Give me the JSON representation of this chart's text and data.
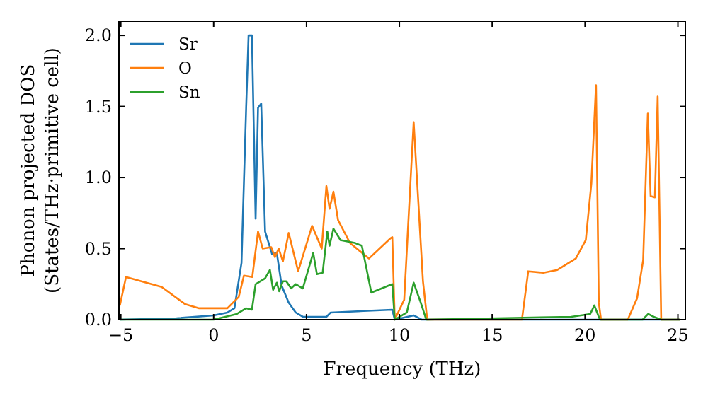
{
  "chart_data": {
    "type": "line",
    "xlabel": "Frequency (THz)",
    "ylabel": "Phonon projected DOS\n(States/THz·primitive cell)",
    "xlim": [
      -5.1,
      25.4
    ],
    "ylim": [
      0,
      2.1
    ],
    "xticks": [
      {
        "value": -5,
        "label": "−5"
      },
      0,
      5,
      10,
      15,
      20,
      25
    ],
    "yticks": [
      {
        "value": 0,
        "label": "0.0"
      },
      0.5,
      {
        "value": 1,
        "label": "1.0"
      },
      1.5,
      {
        "value": 2,
        "label": "2.0"
      }
    ],
    "grid": false,
    "legend": "top left",
    "marker": "none",
    "line_style": "solid",
    "series": [
      {
        "name": "Sr",
        "color": "#1f77b4",
        "x": [
          -5.05,
          -2,
          0,
          0.74,
          1.12,
          1.5,
          1.75,
          1.88,
          2.06,
          2.26,
          2.39,
          2.56,
          2.77,
          3.15,
          3.4,
          3.66,
          4.04,
          4.42,
          4.8,
          6.07,
          6.3,
          9.62,
          9.75,
          10.77,
          11.2,
          25.1
        ],
        "values": [
          0,
          0.01,
          0.03,
          0.05,
          0.08,
          0.4,
          1.49,
          2.0,
          2.0,
          0.71,
          1.49,
          1.52,
          0.62,
          0.46,
          0.47,
          0.24,
          0.12,
          0.05,
          0.02,
          0.02,
          0.05,
          0.07,
          0,
          0.03,
          0,
          0
        ]
      },
      {
        "name": "O",
        "color": "#ff7f0e",
        "x": [
          -5.05,
          -4.72,
          -2.8,
          -1.55,
          -0.78,
          0.74,
          1.35,
          1.63,
          2.08,
          2.39,
          2.64,
          3.1,
          3.3,
          3.5,
          3.73,
          4.04,
          4.55,
          5.3,
          5.82,
          6.07,
          6.24,
          6.45,
          6.7,
          7.34,
          8.36,
          9.5,
          9.62,
          9.75,
          10.26,
          10.77,
          11.27,
          11.5,
          16.6,
          16.94,
          17.75,
          18.51,
          19.5,
          20.04,
          20.34,
          20.59,
          20.74,
          20.86,
          22.3,
          22.8,
          23.13,
          23.38,
          23.53,
          23.76,
          23.91,
          24.1,
          25.1
        ],
        "values": [
          0.1,
          0.3,
          0.23,
          0.11,
          0.08,
          0.08,
          0.16,
          0.31,
          0.3,
          0.62,
          0.5,
          0.51,
          0.44,
          0.5,
          0.41,
          0.61,
          0.34,
          0.66,
          0.5,
          0.94,
          0.78,
          0.9,
          0.7,
          0.54,
          0.43,
          0.57,
          0.58,
          0,
          0.14,
          1.39,
          0.27,
          0,
          0,
          0.34,
          0.33,
          0.35,
          0.43,
          0.56,
          0.96,
          1.65,
          0.12,
          0,
          0,
          0.15,
          0.42,
          1.45,
          0.87,
          0.86,
          1.57,
          0,
          0
        ]
      },
      {
        "name": "Sn",
        "color": "#2ca02c",
        "x": [
          -5.05,
          0,
          1.25,
          1.75,
          2.06,
          2.26,
          2.77,
          3.03,
          3.2,
          3.4,
          3.53,
          3.73,
          3.91,
          4.17,
          4.42,
          4.8,
          5.36,
          5.56,
          5.87,
          6.12,
          6.24,
          6.45,
          6.83,
          7.6,
          7.98,
          8.49,
          9.62,
          9.75,
          10.4,
          10.77,
          11.15,
          11.45,
          19.26,
          20.28,
          20.5,
          20.8,
          23.1,
          23.4,
          23.7,
          24.1,
          25.1
        ],
        "values": [
          0,
          0,
          0.04,
          0.08,
          0.07,
          0.25,
          0.29,
          0.35,
          0.21,
          0.26,
          0.2,
          0.27,
          0.27,
          0.22,
          0.25,
          0.22,
          0.47,
          0.32,
          0.33,
          0.62,
          0.52,
          0.64,
          0.56,
          0.54,
          0.52,
          0.19,
          0.25,
          0,
          0.05,
          0.26,
          0.12,
          0,
          0.02,
          0.04,
          0.1,
          0,
          0,
          0.04,
          0.02,
          0,
          0
        ]
      }
    ]
  }
}
